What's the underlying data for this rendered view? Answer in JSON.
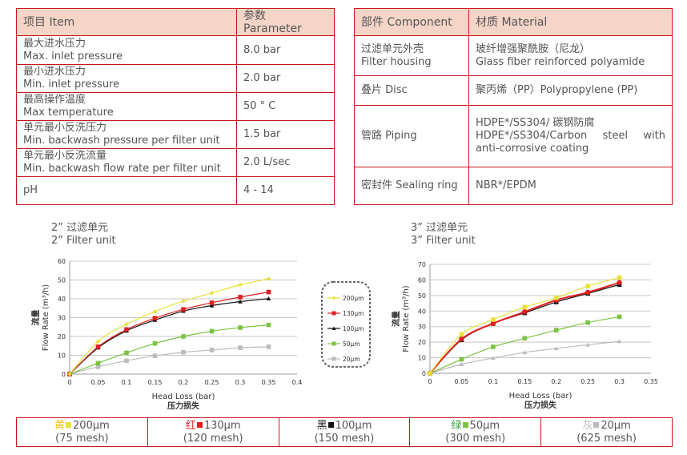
{
  "specs": {
    "headers": [
      "项目 Item",
      "参数 Parameter"
    ],
    "rows": [
      {
        "zh": "最大进水压力",
        "en": "Max. inlet pressure",
        "value": "8.0 bar"
      },
      {
        "zh": "最小进水压力",
        "en": "Min. inlet pressure",
        "value": "2.0 bar"
      },
      {
        "zh": "最高操作温度",
        "en": "Max temperature",
        "value": "50 ° C"
      },
      {
        "zh": "单元最小反洗压力",
        "en": "Min. backwash pressure per filter unit",
        "value": "1.5 bar"
      },
      {
        "zh": "单元最小反洗流量",
        "en": "Min. backwash flow rate per filter unit",
        "value": "2.0 L/sec"
      },
      {
        "zh": "",
        "en": "pH",
        "value": "4 - 14"
      }
    ]
  },
  "materials": {
    "headers": [
      "部件 Component",
      "材质 Material"
    ],
    "rows": [
      {
        "c1": "过滤单元外壳",
        "c2": "Filter housing",
        "m1": "玻纤增强聚酰胺（尼龙）",
        "m2": "Glass fiber reinforced polyamide"
      },
      {
        "c1": "叠片 Disc",
        "c2": "",
        "m1": "聚丙烯（PP）Polypropylene (PP)",
        "m2": ""
      },
      {
        "c1": "管路 Piping",
        "c2": "",
        "m1": "HDPE*/SS304/ 碳钢防腐",
        "m2": "HDPE*/SS304/Carbon steel with anti-corrosive coating"
      },
      {
        "c1": "密封件 Sealing ring",
        "c2": "",
        "m1": "NBR*/EPDM",
        "m2": ""
      }
    ]
  },
  "colors": {
    "200": "#e8e23a",
    "130": "#e02020",
    "100": "#111111",
    "50": "#7cc243",
    "20": "#bbbbbb",
    "border": "#c8161d",
    "header_bg": "#f5d5c8"
  },
  "chart_data": [
    {
      "type": "line",
      "title_zh": "2” 过滤单元",
      "title_en": "2” Filter unit",
      "xlabel": "Head Loss (bar)",
      "xlabel_zh": "压力损失",
      "ylabel": "Flow Rate (m³/h)",
      "ylabel_zh": "流量",
      "xlim": [
        0,
        0.4
      ],
      "ylim": [
        0,
        60
      ],
      "xticks": [
        "0",
        "0.05",
        "0.1",
        "0.15",
        "0.2",
        "0.25",
        "0.3",
        "0.35",
        "0.4"
      ],
      "yticks": [
        "0",
        "10",
        "20",
        "30",
        "40",
        "50",
        "60"
      ],
      "grid": true,
      "legend": "right",
      "x": [
        0,
        0.05,
        0.1,
        0.15,
        0.2,
        0.25,
        0.3,
        0.35
      ],
      "series": [
        {
          "name": "200μm",
          "key": "200",
          "marker": "diamond",
          "values": [
            0,
            17.3,
            26.5,
            33.2,
            38.8,
            43,
            47.4,
            50.6
          ]
        },
        {
          "name": "130μm",
          "key": "130",
          "marker": "square",
          "values": [
            0,
            14.5,
            23.7,
            29.7,
            34.4,
            37.9,
            40.9,
            43.6
          ]
        },
        {
          "name": "100μm",
          "key": "100",
          "marker": "triangle",
          "values": [
            0,
            14,
            23,
            28.7,
            33.5,
            36.4,
            38.5,
            40.1
          ]
        },
        {
          "name": "50μm",
          "key": "50",
          "marker": "square",
          "values": [
            0,
            5.8,
            11.3,
            16.3,
            20,
            22.8,
            24.7,
            26.1
          ]
        },
        {
          "name": "20μm",
          "key": "20",
          "marker": "square",
          "values": [
            0,
            3.9,
            7.1,
            9.7,
            11.6,
            12.8,
            14,
            14.5
          ]
        }
      ]
    },
    {
      "type": "line",
      "title_zh": "3” 过滤单元",
      "title_en": "3” Filter unit",
      "xlabel": "Head Loss (bar)",
      "xlabel_zh": "压力损失",
      "ylabel": "Flow Rate (m³/h)",
      "ylabel_zh": "流量",
      "xlim": [
        0,
        0.35
      ],
      "ylim": [
        0,
        70
      ],
      "xticks": [
        "0",
        "0.05",
        "0.1",
        "0.15",
        "0.2",
        "0.25",
        "0.3",
        "0.35"
      ],
      "yticks": [
        "0",
        "10",
        "20",
        "30",
        "40",
        "50",
        "60",
        "70"
      ],
      "grid": true,
      "x": [
        0,
        0.05,
        0.1,
        0.15,
        0.2,
        0.25,
        0.3
      ],
      "series": [
        {
          "key": "200",
          "marker": "square",
          "values": [
            0,
            25,
            34.5,
            42.5,
            48.5,
            56,
            61.5
          ]
        },
        {
          "key": "130",
          "marker": "circle",
          "values": [
            0,
            22,
            32,
            39.5,
            47,
            52,
            58.3
          ]
        },
        {
          "key": "100",
          "marker": "square",
          "values": [
            0,
            21.5,
            32,
            38.8,
            45.8,
            51.3,
            57
          ]
        },
        {
          "key": "50",
          "marker": "square",
          "values": [
            0,
            9,
            17,
            22.5,
            27.7,
            32.6,
            36.3
          ]
        },
        {
          "key": "20",
          "marker": "triangle",
          "values": [
            0,
            5.8,
            9.8,
            13.4,
            16,
            18.3,
            20.5
          ]
        }
      ]
    }
  ],
  "mesh_legend": [
    {
      "zh": "黄",
      "key": "200",
      "size": "200μm",
      "mesh": "(75 mesh)",
      "zh_color": "#f0c020"
    },
    {
      "zh": "红",
      "key": "130",
      "size": "130μm",
      "mesh": "(120 mesh)",
      "zh_color": "#e02020"
    },
    {
      "zh": "黑",
      "key": "100",
      "size": "100μm",
      "mesh": "(150 mesh)",
      "zh_color": "#222222"
    },
    {
      "zh": "绿",
      "key": "50",
      "size": "50μm",
      "mesh": "(300 mesh)",
      "zh_color": "#3aa03a"
    },
    {
      "zh": "灰",
      "key": "20",
      "size": "20μm",
      "mesh": "(625 mesh)",
      "zh_color": "#bbbbbb"
    }
  ]
}
